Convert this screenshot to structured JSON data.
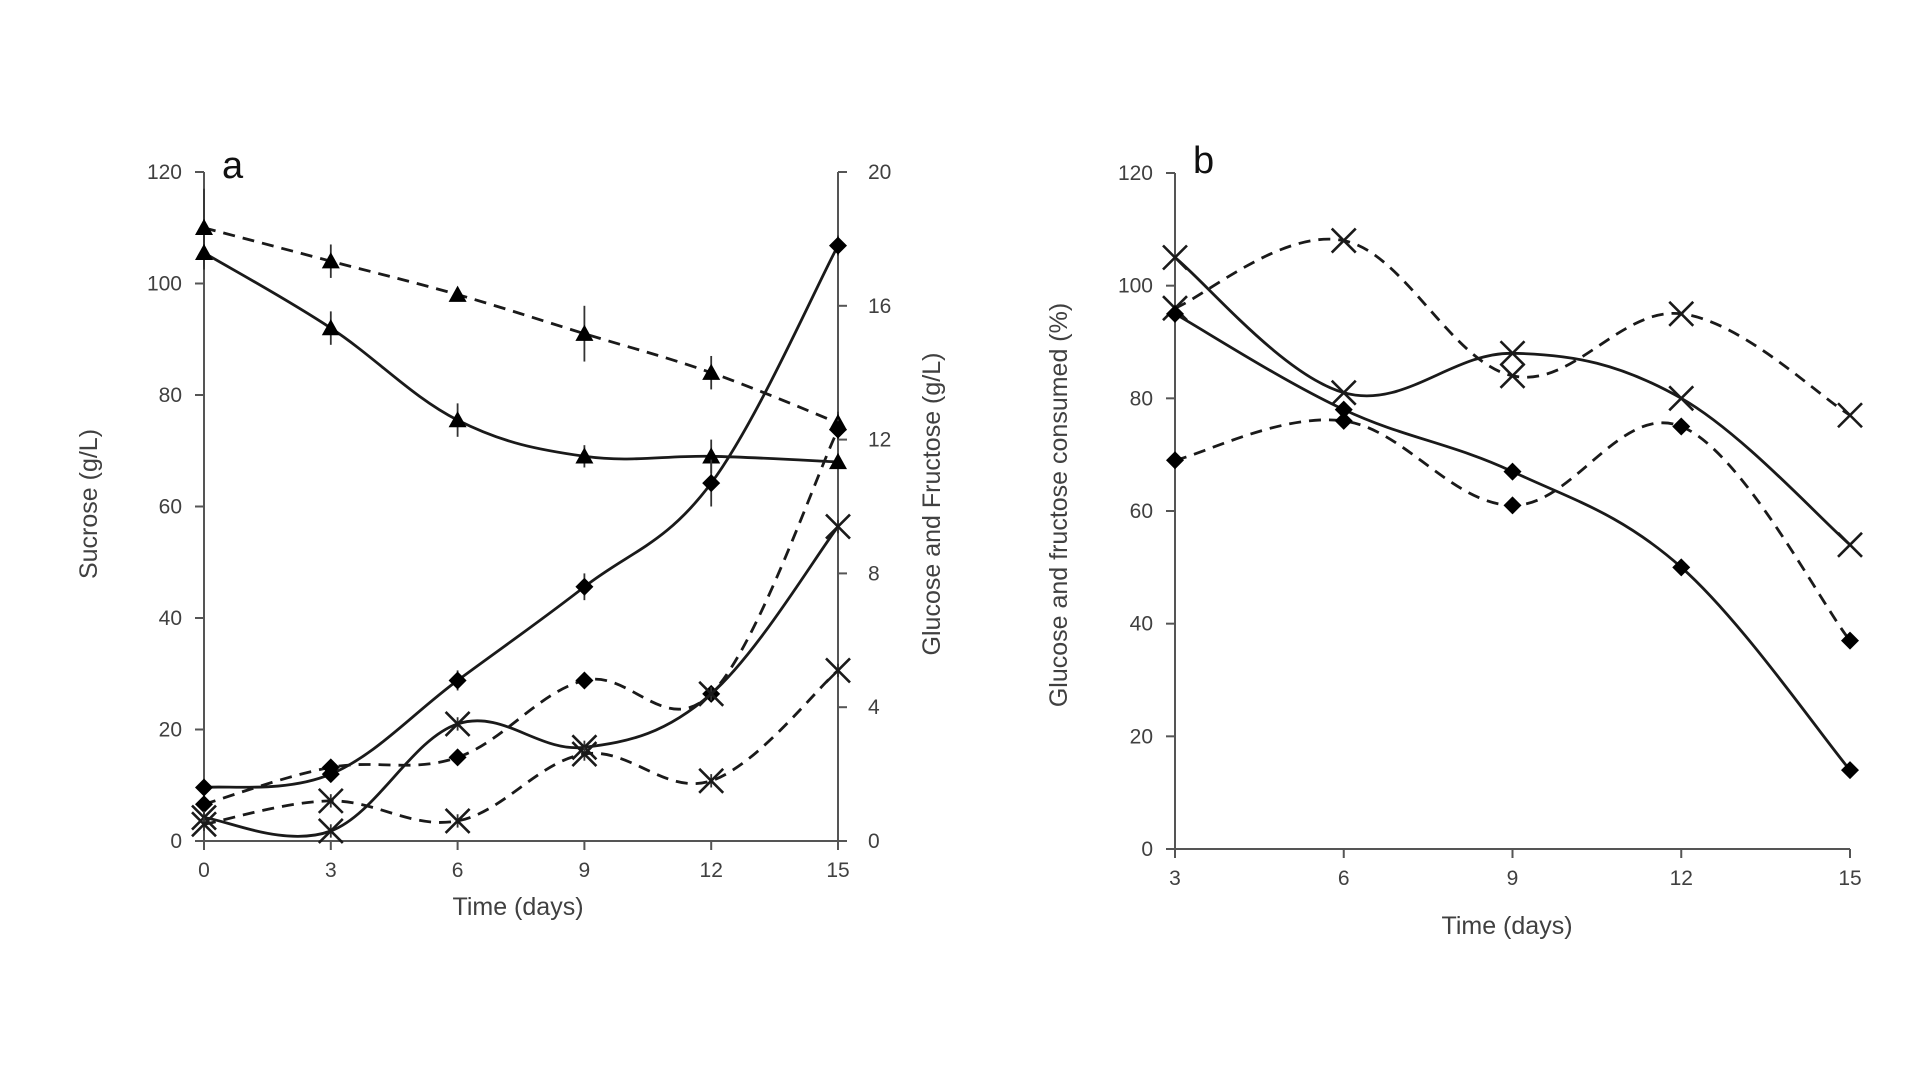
{
  "chart_data": [
    {
      "type": "line",
      "panel_label": "a",
      "xlabel": "Time (days)",
      "ylabel": "Sucrose (g/L)",
      "y2label": "Glucose and  Fructose (g/L)",
      "x_ticks": [
        "0",
        "3",
        "6",
        "9",
        "12",
        "15"
      ],
      "y_ticks": [
        "0",
        "20",
        "40",
        "60",
        "80",
        "100",
        "120"
      ],
      "y2_ticks": [
        "0",
        "4",
        "8",
        "12",
        "16",
        "20"
      ],
      "xlim": [
        0,
        15
      ],
      "ylim": [
        0,
        120
      ],
      "y2lim": [
        0,
        20
      ],
      "grid": false,
      "series": [
        {
          "axis": "left",
          "marker": "triangle",
          "dashed": true,
          "x": [
            0,
            3,
            6,
            9,
            12,
            15
          ],
          "values": [
            110,
            104,
            98,
            91,
            84,
            75
          ],
          "error": [
            7,
            3,
            1,
            5,
            3,
            2
          ]
        },
        {
          "axis": "left",
          "marker": "triangle",
          "dashed": false,
          "x": [
            0,
            3,
            6,
            9,
            12,
            15
          ],
          "values": [
            105.5,
            92,
            75.5,
            69,
            69,
            68
          ],
          "error": [
            3,
            3,
            3,
            2,
            3,
            1
          ]
        },
        {
          "axis": "right",
          "marker": "diamond",
          "dashed": false,
          "x": [
            0,
            3,
            6,
            9,
            12,
            15
          ],
          "values": [
            1.6,
            2.0,
            4.8,
            7.6,
            10.7,
            17.8
          ],
          "error": [
            0.2,
            0.2,
            0.3,
            0.4,
            0.7,
            0.3
          ]
        },
        {
          "axis": "right",
          "marker": "diamond",
          "dashed": true,
          "x": [
            0,
            3,
            6,
            9,
            12,
            15
          ],
          "values": [
            1.1,
            2.2,
            2.5,
            4.8,
            4.4,
            12.3
          ],
          "error": [
            0.2,
            0.2,
            0.2,
            0.2,
            0.2,
            0.3
          ]
        },
        {
          "axis": "right",
          "marker": "x",
          "dashed": false,
          "x": [
            0,
            3,
            6,
            9,
            12,
            15
          ],
          "values": [
            0.7,
            0.3,
            3.5,
            2.8,
            4.4,
            9.4
          ],
          "error": [
            0.2,
            0.2,
            0.2,
            0.2,
            0.2,
            0.2
          ]
        },
        {
          "axis": "right",
          "marker": "x",
          "dashed": true,
          "x": [
            0,
            3,
            6,
            9,
            12,
            15
          ],
          "values": [
            0.5,
            1.2,
            0.6,
            2.6,
            1.8,
            5.1
          ],
          "error": [
            0.2,
            0.2,
            0.2,
            0.2,
            0.2,
            0.2
          ]
        }
      ]
    },
    {
      "type": "line",
      "panel_label": "b",
      "xlabel": "Time (days)",
      "ylabel": "Glucose and fructose consumed (%)",
      "x_ticks": [
        "3",
        "6",
        "9",
        "12",
        "15"
      ],
      "y_ticks": [
        "0",
        "20",
        "40",
        "60",
        "80",
        "100",
        "120"
      ],
      "xlim": [
        3,
        15
      ],
      "ylim": [
        0,
        120
      ],
      "grid": false,
      "series": [
        {
          "marker": "x",
          "dashed": false,
          "x": [
            3,
            6,
            9,
            12,
            15
          ],
          "values": [
            105,
            81,
            88,
            80,
            54
          ]
        },
        {
          "marker": "x",
          "dashed": true,
          "x": [
            3,
            6,
            9,
            12,
            15
          ],
          "values": [
            96,
            108,
            84,
            95,
            77
          ]
        },
        {
          "marker": "diamond",
          "dashed": false,
          "x": [
            3,
            6,
            9,
            12,
            15
          ],
          "values": [
            95,
            78,
            67,
            50,
            14
          ]
        },
        {
          "marker": "diamond",
          "dashed": true,
          "x": [
            3,
            6,
            9,
            12,
            15
          ],
          "values": [
            69,
            76,
            61,
            75,
            37
          ]
        }
      ]
    }
  ]
}
